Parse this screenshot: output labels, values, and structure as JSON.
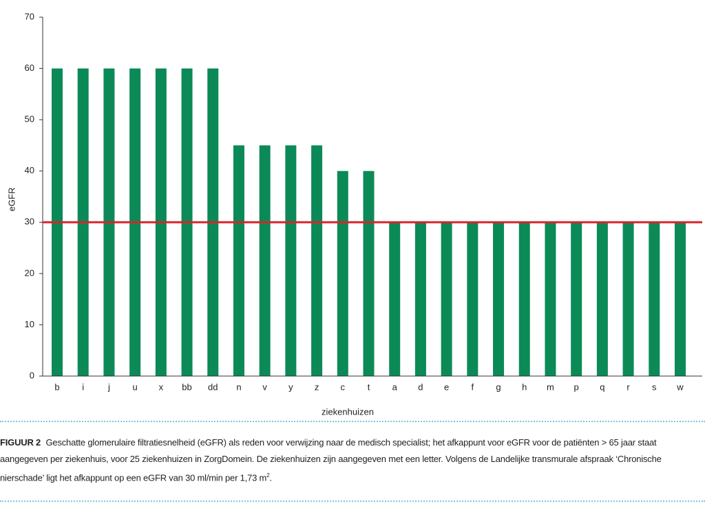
{
  "chart_data": {
    "type": "bar",
    "categories": [
      "b",
      "i",
      "j",
      "u",
      "x",
      "bb",
      "dd",
      "n",
      "v",
      "y",
      "z",
      "c",
      "t",
      "a",
      "d",
      "e",
      "f",
      "g",
      "h",
      "m",
      "p",
      "q",
      "r",
      "s",
      "w"
    ],
    "values": [
      60,
      60,
      60,
      60,
      60,
      60,
      60,
      45,
      45,
      45,
      45,
      40,
      40,
      30,
      30,
      30,
      30,
      30,
      30,
      30,
      30,
      30,
      30,
      30,
      30
    ],
    "color": "#0b8a57",
    "ylim": [
      0,
      70
    ],
    "yticks": [
      0,
      10,
      20,
      30,
      40,
      50,
      60,
      70
    ],
    "y_label": "eGFR",
    "x_label": "ziekenhuizen",
    "reference_line": {
      "value": 30,
      "color": "#d8232a"
    }
  },
  "caption": {
    "label": "FIGUUR 2",
    "text": "Geschatte glomerulaire filtratiesnelheid (eGFR) als reden voor verwijzing naar de medisch specialist; het afkappunt voor eGFR voor de patiënten > 65 jaar staat aangegeven per ziekenhuis, voor 25 ziekenhuizen in ZorgDomein. De ziekenhuizen zijn aangegeven met een letter. Volgens de Landelijke transmurale afspraak ‘Chronische nierschade’ ligt het afkappunt op een eGFR van 30 ml/min per 1,73 m",
    "superscript": "2",
    "end": "."
  }
}
